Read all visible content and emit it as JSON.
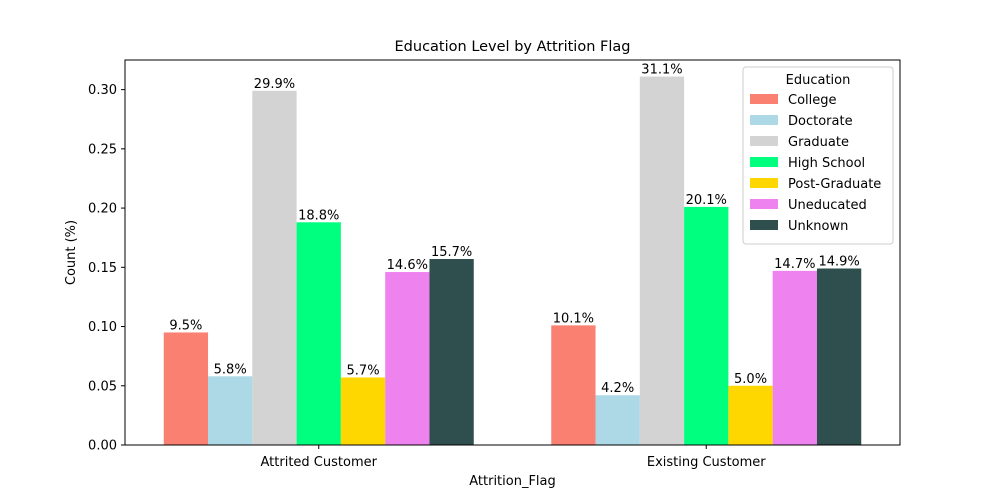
{
  "chart_data": {
    "type": "bar",
    "title": "Education Level by Attrition Flag",
    "xlabel": "Attrition_Flag",
    "ylabel": "Count (%)",
    "categories": [
      "Attrited Customer",
      "Existing Customer"
    ],
    "ylim": [
      0,
      0.325
    ],
    "yticks": [
      0.0,
      0.05,
      0.1,
      0.15,
      0.2,
      0.25,
      0.3
    ],
    "ytick_labels": [
      "0.00",
      "0.05",
      "0.10",
      "0.15",
      "0.20",
      "0.25",
      "0.30"
    ],
    "grid": false,
    "legend": {
      "title": "Education",
      "placement": "top-right"
    },
    "series": [
      {
        "name": "College",
        "color": "#fa8072",
        "values": [
          0.095,
          0.101
        ],
        "labels": [
          "9.5%",
          "10.1%"
        ]
      },
      {
        "name": "Doctorate",
        "color": "#add8e6",
        "values": [
          0.058,
          0.042
        ],
        "labels": [
          "5.8%",
          "4.2%"
        ]
      },
      {
        "name": "Graduate",
        "color": "#d3d3d3",
        "values": [
          0.299,
          0.311
        ],
        "labels": [
          "29.9%",
          "31.1%"
        ]
      },
      {
        "name": "High School",
        "color": "#00ff7f",
        "values": [
          0.188,
          0.201
        ],
        "labels": [
          "18.8%",
          "20.1%"
        ]
      },
      {
        "name": "Post-Graduate",
        "color": "#ffd700",
        "values": [
          0.057,
          0.05
        ],
        "labels": [
          "5.7%",
          "5.0%"
        ]
      },
      {
        "name": "Uneducated",
        "color": "#ee82ee",
        "values": [
          0.146,
          0.147
        ],
        "labels": [
          "14.6%",
          "14.7%"
        ]
      },
      {
        "name": "Unknown",
        "color": "#2f4f4f",
        "values": [
          0.157,
          0.149
        ],
        "labels": [
          "15.7%",
          "14.9%"
        ]
      }
    ]
  }
}
